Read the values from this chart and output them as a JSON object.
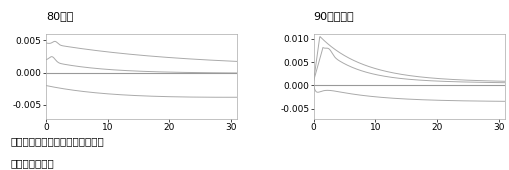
{
  "title_left": "80年代",
  "title_right": "90年代以降",
  "note": "注：ブートストラップ法による。",
  "source": "出所：筆者作成",
  "xlim": [
    0,
    31
  ],
  "left_ylim": [
    -0.0072,
    0.006
  ],
  "right_ylim": [
    -0.0072,
    0.011
  ],
  "left_yticks": [
    -0.005,
    0.0,
    0.005
  ],
  "right_yticks": [
    -0.005,
    0.0,
    0.005,
    0.01
  ],
  "xticks": [
    0,
    10,
    20,
    30
  ],
  "line_color": "#aaaaaa",
  "zero_line_color": "#999999",
  "title_fontsize": 8,
  "tick_fontsize": 6.5,
  "note_fontsize": 7.5
}
